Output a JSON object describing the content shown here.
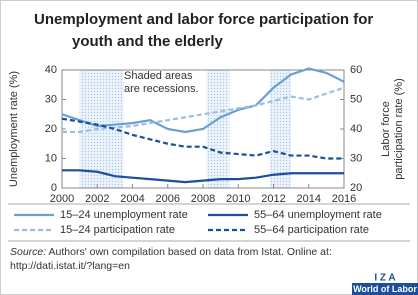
{
  "chart_data": {
    "type": "line",
    "title": [
      "Unemployment and labor force participation for",
      "youth and the elderly"
    ],
    "annotation": [
      "Shaded areas",
      "are recessions."
    ],
    "ylabel": "Unemployment rate (%)",
    "y2label": [
      "Labor force",
      "participation rate (%)"
    ],
    "x": [
      2000,
      2001,
      2002,
      2003,
      2004,
      2005,
      2006,
      2007,
      2008,
      2009,
      2010,
      2011,
      2012,
      2013,
      2014,
      2015,
      2016
    ],
    "xlim": [
      2000,
      2016
    ],
    "xticks": [
      2000,
      2002,
      2004,
      2006,
      2008,
      2010,
      2012,
      2014,
      2016
    ],
    "ylim": [
      0,
      40
    ],
    "yticks": [
      0,
      10,
      20,
      30,
      40
    ],
    "y2lim": [
      20,
      60
    ],
    "y2ticks": [
      20,
      30,
      40,
      50,
      60
    ],
    "recessions": [
      [
        2001,
        2003.5
      ],
      [
        2008.2,
        2009.5
      ],
      [
        2011.8,
        2013
      ]
    ],
    "series": [
      {
        "name": "15–24 unemployment rate",
        "color": "#6a9fd2",
        "dash": false,
        "values": [
          25,
          23,
          21,
          21.5,
          22,
          23,
          20,
          19,
          20,
          24,
          26.5,
          28,
          34,
          38.5,
          40.5,
          39,
          36
        ]
      },
      {
        "name": "55–64 unemployment rate",
        "color": "#1b4f9b",
        "dash": false,
        "values": [
          6,
          6,
          5.5,
          4,
          3.5,
          3,
          2.5,
          2,
          2.5,
          3,
          3,
          3.5,
          4.5,
          5,
          5,
          5,
          5
        ]
      },
      {
        "name": "15–24 participation rate",
        "color": "#9bbde4",
        "dash": true,
        "axis": "y2",
        "values": [
          39,
          39,
          40,
          40.5,
          41,
          42,
          43,
          44,
          45,
          46,
          47,
          48,
          49.5,
          51,
          50,
          52,
          54
        ]
      },
      {
        "name": "55–64 participation rate",
        "color": "#1b4f9b",
        "dash": true,
        "axis": "y2",
        "values": [
          43.5,
          42.5,
          41.5,
          40,
          38,
          36.5,
          35,
          34,
          34,
          32,
          31.5,
          31,
          32.5,
          31,
          31,
          30,
          30
        ]
      }
    ]
  },
  "source": {
    "label": "Source:",
    "text": [
      "Authors' own compilation based on data from Istat. Online at:",
      "http://dati.istat.it/?lang=en"
    ]
  },
  "logo": {
    "name": "I Z A",
    "subtitle": "World of Labor"
  }
}
